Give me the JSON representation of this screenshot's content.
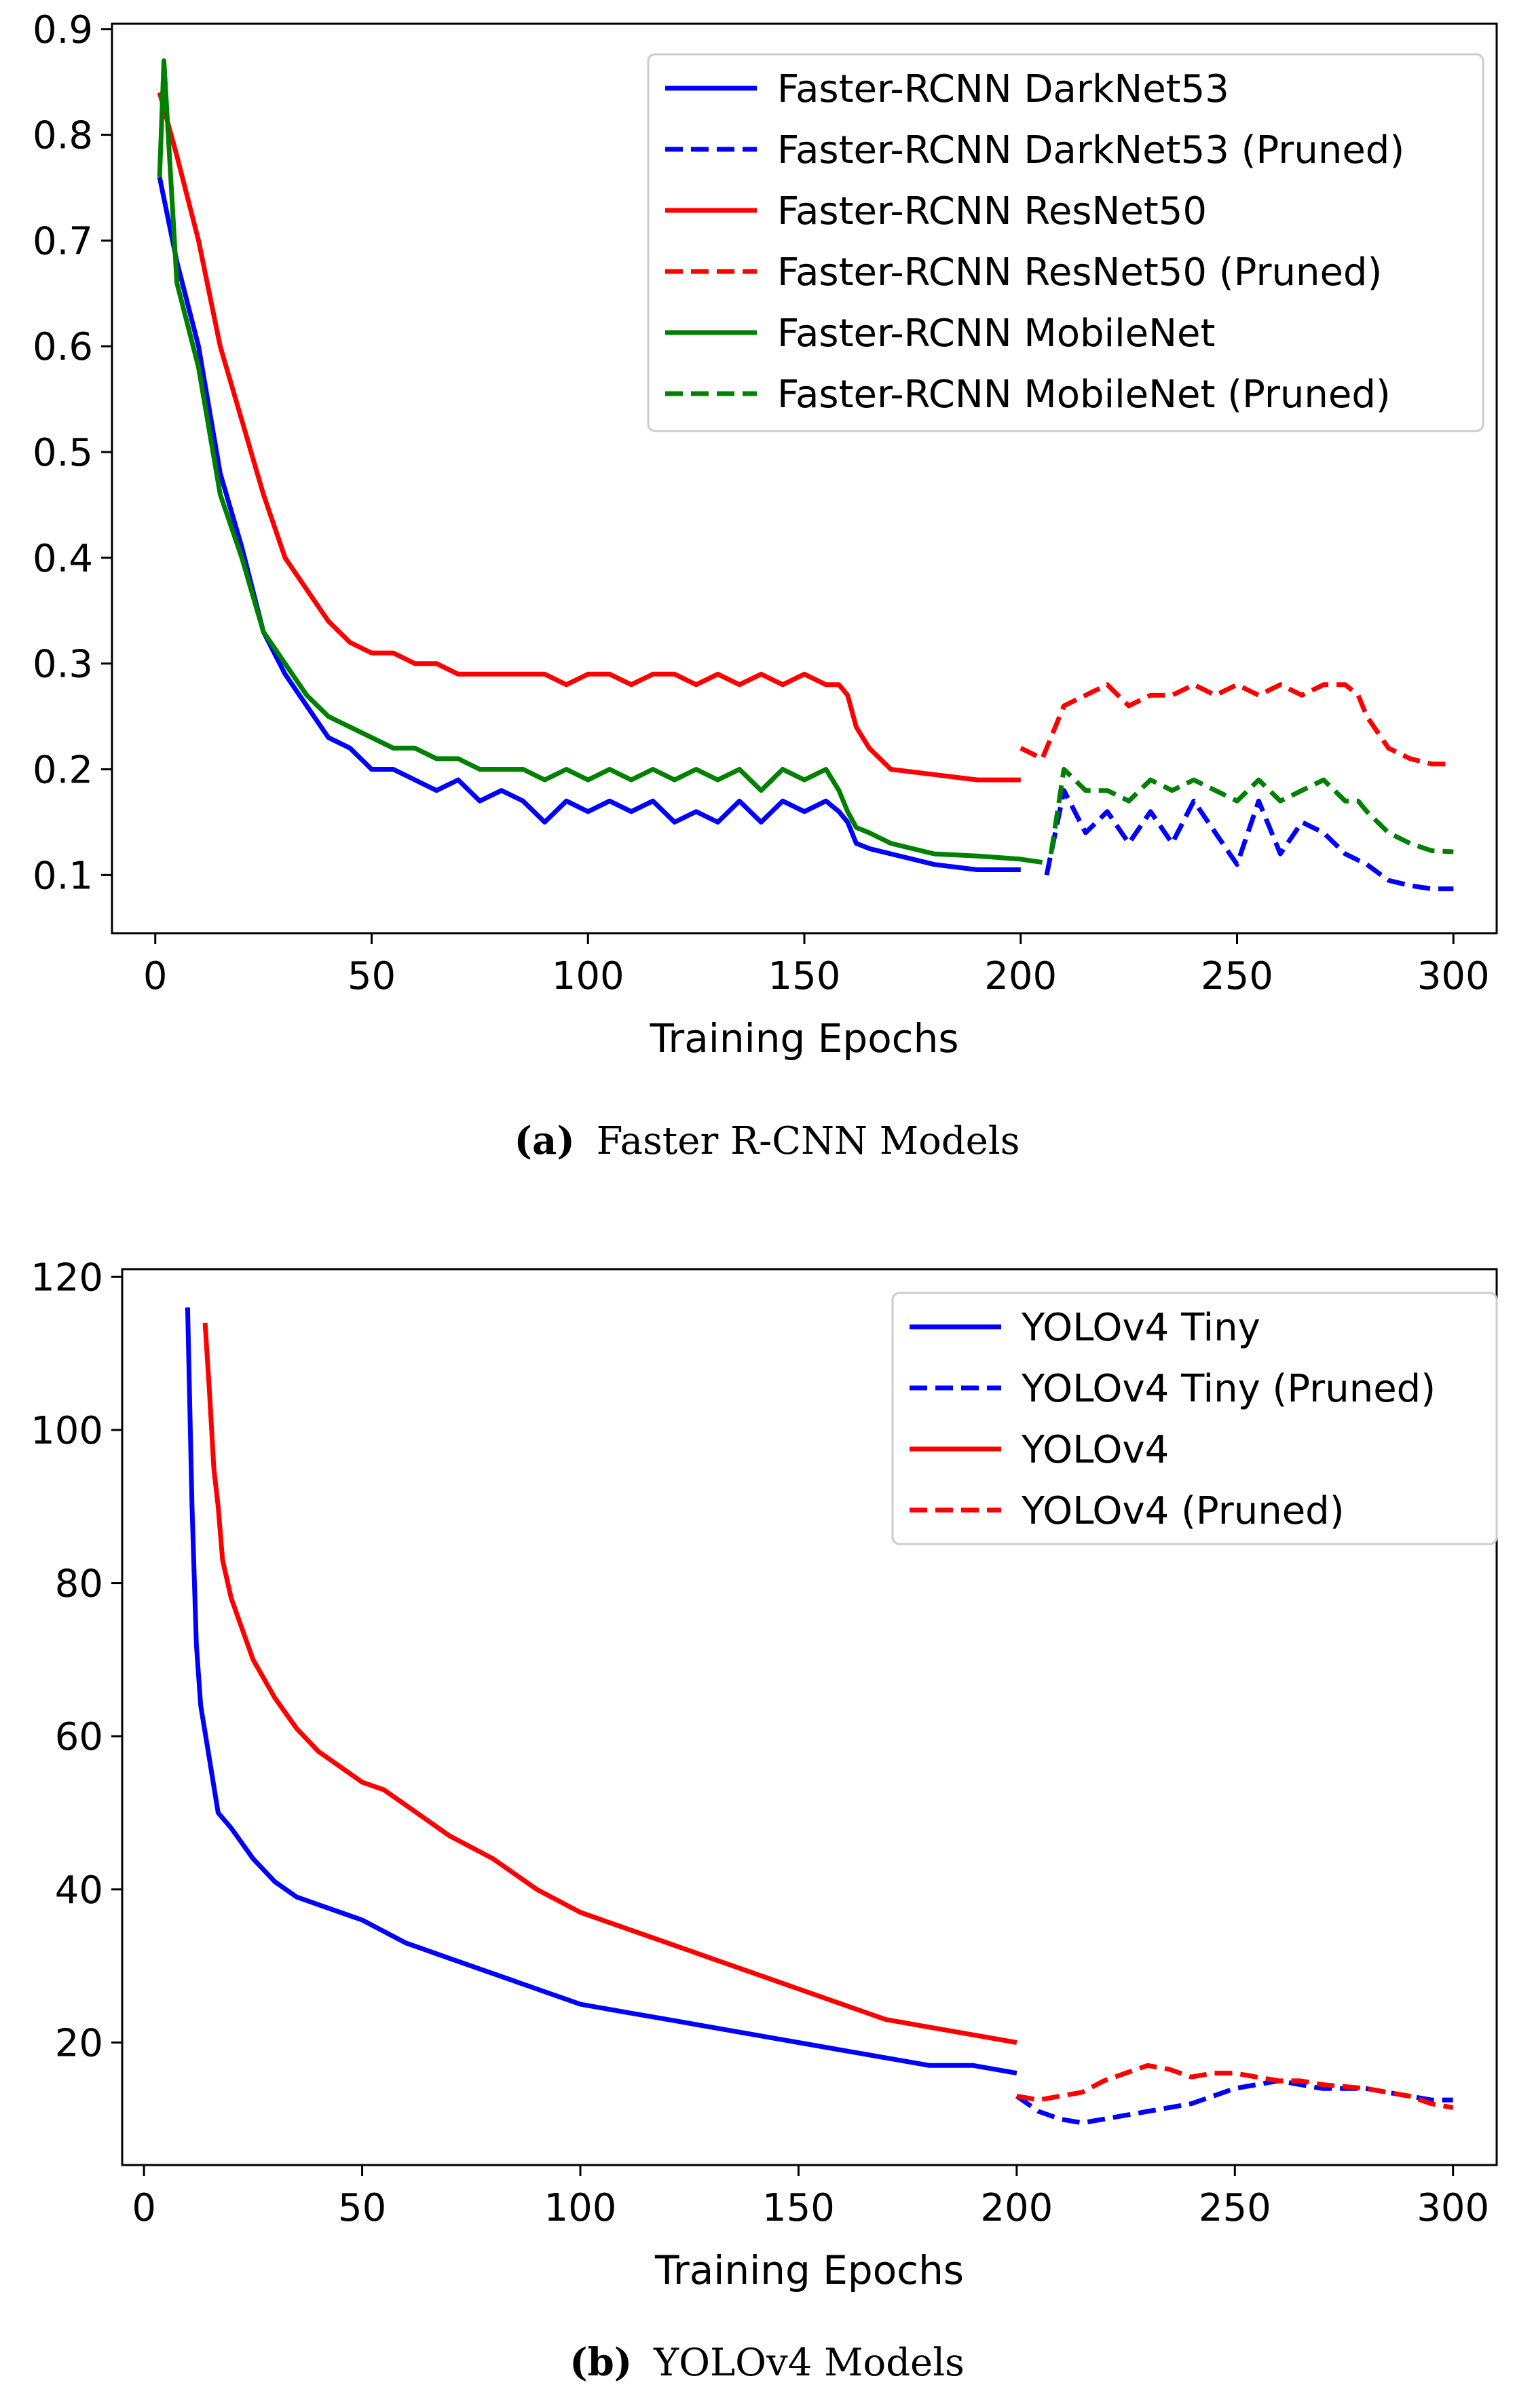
{
  "captions": [
    {
      "letter": "(a)",
      "text": "Faster R-CNN Models"
    },
    {
      "letter": "(b)",
      "text": "YOLOv4 Models"
    }
  ],
  "chart_data": [
    {
      "type": "line",
      "title": "",
      "xlabel": "Training Epochs",
      "ylabel": "",
      "xlim": [
        -10,
        310
      ],
      "ylim": [
        0.045,
        0.905
      ],
      "xticks": [
        0,
        50,
        100,
        150,
        200,
        250,
        300
      ],
      "xtick_labels": [
        "0",
        "50",
        "100",
        "150",
        "200",
        "250",
        "300"
      ],
      "yticks": [
        0.1,
        0.2,
        0.3,
        0.4,
        0.5,
        0.6,
        0.7,
        0.8,
        0.9
      ],
      "ytick_labels": [
        "0.1",
        "0.2",
        "0.3",
        "0.4",
        "0.5",
        "0.6",
        "0.7",
        "0.8",
        "0.9"
      ],
      "legend_position": "top-right",
      "series": [
        {
          "name": "Faster-RCNN DarkNet53",
          "color": "#0000ff",
          "dash": "solid",
          "x": [
            1,
            5,
            10,
            15,
            20,
            25,
            30,
            35,
            40,
            45,
            50,
            55,
            60,
            65,
            70,
            75,
            80,
            85,
            90,
            95,
            100,
            105,
            110,
            115,
            120,
            125,
            130,
            135,
            140,
            145,
            150,
            155,
            158,
            160,
            162,
            165,
            170,
            180,
            190,
            200
          ],
          "y": [
            0.76,
            0.68,
            0.6,
            0.48,
            0.41,
            0.33,
            0.29,
            0.26,
            0.23,
            0.22,
            0.2,
            0.2,
            0.19,
            0.18,
            0.19,
            0.17,
            0.18,
            0.17,
            0.15,
            0.17,
            0.16,
            0.17,
            0.16,
            0.17,
            0.15,
            0.16,
            0.15,
            0.17,
            0.15,
            0.17,
            0.16,
            0.17,
            0.16,
            0.15,
            0.13,
            0.125,
            0.12,
            0.11,
            0.105,
            0.105
          ]
        },
        {
          "name": "Faster-RCNN DarkNet53 (Pruned)",
          "color": "#0000ff",
          "dash": "dashed",
          "x": [
            206,
            210,
            215,
            220,
            225,
            230,
            235,
            240,
            245,
            250,
            255,
            260,
            265,
            270,
            275,
            280,
            285,
            290,
            295,
            300
          ],
          "y": [
            0.1,
            0.18,
            0.14,
            0.16,
            0.13,
            0.16,
            0.13,
            0.17,
            0.14,
            0.11,
            0.17,
            0.12,
            0.15,
            0.14,
            0.12,
            0.11,
            0.095,
            0.09,
            0.087,
            0.087
          ]
        },
        {
          "name": "Faster-RCNN ResNet50",
          "color": "#ff0000",
          "dash": "solid",
          "x": [
            1,
            5,
            10,
            15,
            20,
            25,
            30,
            35,
            40,
            45,
            50,
            55,
            60,
            65,
            70,
            75,
            80,
            85,
            90,
            95,
            100,
            105,
            110,
            115,
            120,
            125,
            130,
            135,
            140,
            145,
            150,
            155,
            158,
            160,
            162,
            165,
            170,
            180,
            190,
            200
          ],
          "y": [
            0.84,
            0.78,
            0.7,
            0.6,
            0.53,
            0.46,
            0.4,
            0.37,
            0.34,
            0.32,
            0.31,
            0.31,
            0.3,
            0.3,
            0.29,
            0.29,
            0.29,
            0.29,
            0.29,
            0.28,
            0.29,
            0.29,
            0.28,
            0.29,
            0.29,
            0.28,
            0.29,
            0.28,
            0.29,
            0.28,
            0.29,
            0.28,
            0.28,
            0.27,
            0.24,
            0.22,
            0.2,
            0.195,
            0.19,
            0.19
          ]
        },
        {
          "name": "Faster-RCNN ResNet50 (Pruned)",
          "color": "#ff0000",
          "dash": "dashed",
          "x": [
            200,
            205,
            210,
            215,
            220,
            225,
            230,
            235,
            240,
            245,
            250,
            255,
            260,
            265,
            270,
            275,
            278,
            280,
            285,
            290,
            295,
            300
          ],
          "y": [
            0.22,
            0.21,
            0.26,
            0.27,
            0.28,
            0.26,
            0.27,
            0.27,
            0.28,
            0.27,
            0.28,
            0.27,
            0.28,
            0.27,
            0.28,
            0.28,
            0.27,
            0.25,
            0.22,
            0.21,
            0.205,
            0.205
          ]
        },
        {
          "name": "Faster-RCNN MobileNet",
          "color": "#008000",
          "dash": "solid",
          "x": [
            1,
            2,
            5,
            10,
            15,
            20,
            25,
            30,
            35,
            40,
            45,
            50,
            55,
            60,
            65,
            70,
            75,
            80,
            85,
            90,
            95,
            100,
            105,
            110,
            115,
            120,
            125,
            130,
            135,
            140,
            145,
            150,
            155,
            158,
            160,
            162,
            165,
            170,
            180,
            190,
            200,
            205
          ],
          "y": [
            0.76,
            0.87,
            0.66,
            0.58,
            0.46,
            0.4,
            0.33,
            0.3,
            0.27,
            0.25,
            0.24,
            0.23,
            0.22,
            0.22,
            0.21,
            0.21,
            0.2,
            0.2,
            0.2,
            0.19,
            0.2,
            0.19,
            0.2,
            0.19,
            0.2,
            0.19,
            0.2,
            0.19,
            0.2,
            0.18,
            0.2,
            0.19,
            0.2,
            0.18,
            0.16,
            0.145,
            0.14,
            0.13,
            0.12,
            0.118,
            0.115,
            0.112
          ]
        },
        {
          "name": "Faster-RCNN MobileNet (Pruned)",
          "color": "#008000",
          "dash": "dashed",
          "x": [
            207,
            210,
            215,
            220,
            225,
            230,
            235,
            240,
            245,
            250,
            255,
            260,
            265,
            270,
            275,
            278,
            280,
            285,
            290,
            295,
            300
          ],
          "y": [
            0.12,
            0.2,
            0.18,
            0.18,
            0.17,
            0.19,
            0.18,
            0.19,
            0.18,
            0.17,
            0.19,
            0.17,
            0.18,
            0.19,
            0.17,
            0.17,
            0.16,
            0.14,
            0.13,
            0.123,
            0.122
          ]
        }
      ]
    },
    {
      "type": "line",
      "title": "",
      "xlabel": "Training Epochs",
      "ylabel": "",
      "xlim": [
        -5,
        310
      ],
      "ylim": [
        4,
        121
      ],
      "xticks": [
        0,
        50,
        100,
        150,
        200,
        250,
        300
      ],
      "xtick_labels": [
        "0",
        "50",
        "100",
        "150",
        "200",
        "250",
        "300"
      ],
      "yticks": [
        20,
        40,
        60,
        80,
        100,
        120
      ],
      "ytick_labels": [
        "20",
        "40",
        "60",
        "80",
        "100",
        "120"
      ],
      "legend_position": "top-right",
      "series": [
        {
          "name": "YOLOv4 Tiny",
          "color": "#0000ff",
          "dash": "solid",
          "x": [
            10,
            11,
            12,
            13,
            15,
            17,
            20,
            25,
            30,
            35,
            40,
            50,
            60,
            70,
            80,
            90,
            100,
            110,
            120,
            130,
            140,
            150,
            160,
            170,
            180,
            190,
            200
          ],
          "y": [
            116,
            90,
            72,
            64,
            57,
            50,
            48,
            44,
            41,
            39,
            38,
            36,
            33,
            31,
            29,
            27,
            25,
            24,
            23,
            22,
            21,
            20,
            19,
            18,
            17,
            17,
            16
          ]
        },
        {
          "name": "YOLOv4 Tiny (Pruned)",
          "color": "#0000ff",
          "dash": "dashed",
          "x": [
            200,
            205,
            210,
            215,
            220,
            230,
            240,
            250,
            260,
            270,
            280,
            290,
            295,
            300
          ],
          "y": [
            13,
            11,
            10,
            9.5,
            10,
            11,
            12,
            14,
            15,
            14,
            14,
            13,
            12.5,
            12.5
          ]
        },
        {
          "name": "YOLOv4",
          "color": "#ff0000",
          "dash": "solid",
          "x": [
            14,
            15,
            16,
            17,
            18,
            20,
            25,
            30,
            35,
            40,
            45,
            50,
            55,
            60,
            70,
            80,
            90,
            100,
            110,
            120,
            130,
            140,
            150,
            160,
            170,
            180,
            190,
            200
          ],
          "y": [
            114,
            105,
            95,
            90,
            83,
            78,
            70,
            65,
            61,
            58,
            56,
            54,
            53,
            51,
            47,
            44,
            40,
            37,
            35,
            33,
            31,
            29,
            27,
            25,
            23,
            22,
            21,
            20
          ]
        },
        {
          "name": "YOLOv4 (Pruned)",
          "color": "#ff0000",
          "dash": "dashed",
          "x": [
            200,
            205,
            210,
            215,
            220,
            225,
            230,
            235,
            240,
            245,
            250,
            255,
            260,
            265,
            270,
            280,
            290,
            295,
            300
          ],
          "y": [
            13,
            12.5,
            13,
            13.5,
            15,
            16,
            17,
            16.5,
            15.5,
            16,
            16,
            15.5,
            15,
            15,
            14.5,
            14,
            13,
            12,
            11.5
          ]
        }
      ]
    }
  ]
}
